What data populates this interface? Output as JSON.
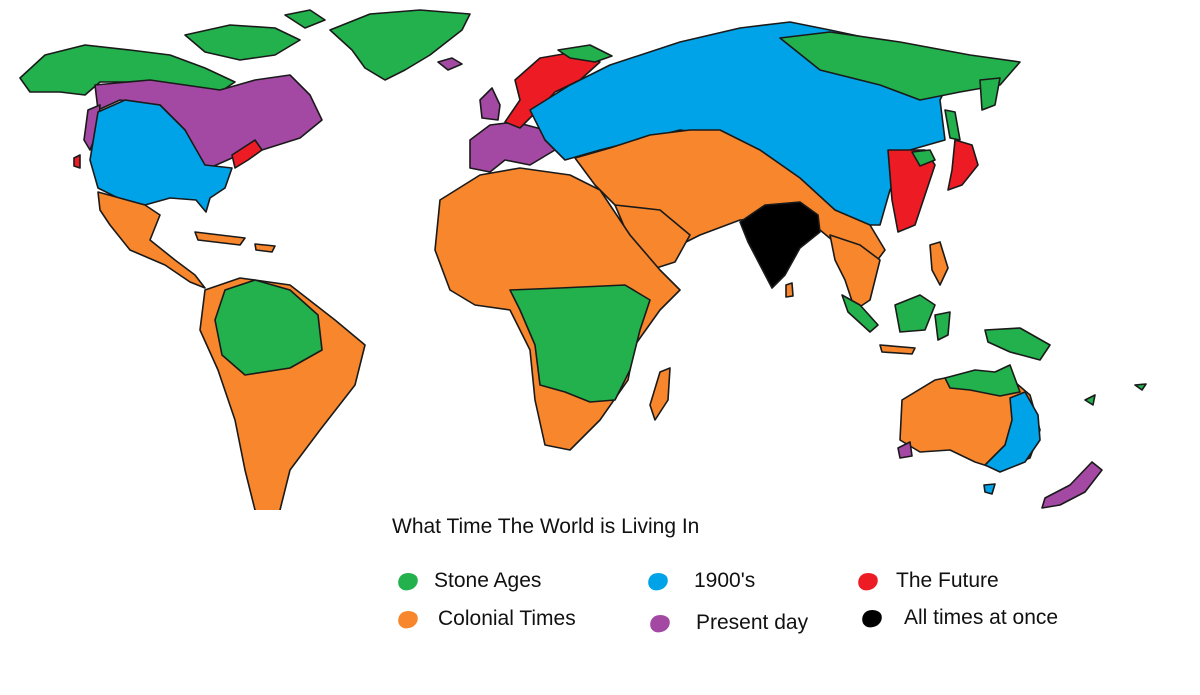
{
  "title": "What Time The World is Living In",
  "colors": {
    "stone_ages": "#22b14c",
    "colonial_times": "#f7862c",
    "nineteen_hundreds": "#00a2e8",
    "present_day": "#a349a4",
    "the_future": "#ed1c24",
    "all_times": "#000000"
  },
  "legend": [
    {
      "label": "Stone Ages",
      "color": "#22b14c"
    },
    {
      "label": "1900's",
      "color": "#00a2e8"
    },
    {
      "label": "The Future",
      "color": "#ed1c24"
    },
    {
      "label": "Colonial Times",
      "color": "#f7862c"
    },
    {
      "label": "Present day",
      "color": "#a349a4"
    },
    {
      "label": "All times at once",
      "color": "#000000"
    }
  ]
}
